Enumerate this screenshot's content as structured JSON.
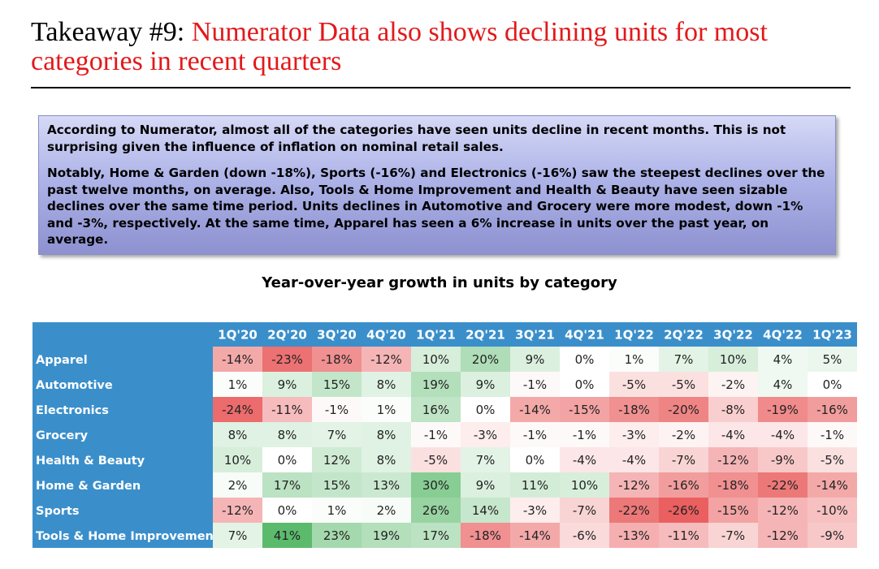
{
  "title": {
    "prefix": "Takeaway #9:",
    "highlight": "Numerator Data also shows declining units for most categories in recent quarters"
  },
  "summary": {
    "paragraph1": "According to Numerator, almost all of the categories have seen units decline in recent months. This is not surprising given the influence of inflation on nominal retail sales.",
    "paragraph2": "Notably, Home & Garden (down -18%), Sports (-16%) and Electronics (-16%) saw the steepest declines over the past twelve months, on average. Also, Tools & Home Improvement and Health & Beauty have seen sizable declines over the same time period. Units declines in Automotive and Grocery were more modest, down -1% and -3%, respectively. At the same time, Apparel has seen a 6% increase in units over the past year, on average."
  },
  "colors": {
    "header_bg": "#3a8fcb",
    "negative": "#ea5f60",
    "positive": "#5cba6d",
    "neutral": "#ffffff"
  },
  "chart_data": {
    "type": "heatmap",
    "title": "Year-over-year growth in units by category",
    "unit": "%",
    "columns": [
      "1Q'20",
      "2Q'20",
      "3Q'20",
      "4Q'20",
      "1Q'21",
      "2Q'21",
      "3Q'21",
      "4Q'21",
      "1Q'22",
      "2Q'22",
      "3Q'22",
      "4Q'22",
      "1Q'23"
    ],
    "rows": [
      {
        "label": "Apparel",
        "values": [
          -14,
          -23,
          -18,
          -12,
          10,
          20,
          9,
          0,
          1,
          7,
          10,
          4,
          5
        ]
      },
      {
        "label": "Automotive",
        "values": [
          1,
          9,
          15,
          8,
          19,
          9,
          -1,
          0,
          -5,
          -5,
          -2,
          4,
          0
        ]
      },
      {
        "label": "Electronics",
        "values": [
          -24,
          -11,
          -1,
          1,
          16,
          0,
          -14,
          -15,
          -18,
          -20,
          -8,
          -19,
          -16
        ]
      },
      {
        "label": "Grocery",
        "values": [
          8,
          8,
          7,
          8,
          -1,
          -3,
          -1,
          -1,
          -3,
          -2,
          -4,
          -4,
          -1
        ]
      },
      {
        "label": "Health & Beauty",
        "values": [
          10,
          0,
          12,
          8,
          -5,
          7,
          0,
          -4,
          -4,
          -7,
          -12,
          -9,
          -5
        ]
      },
      {
        "label": "Home & Garden",
        "values": [
          2,
          17,
          15,
          13,
          30,
          9,
          11,
          10,
          -12,
          -16,
          -18,
          -22,
          -14
        ]
      },
      {
        "label": "Sports",
        "values": [
          -12,
          0,
          1,
          2,
          26,
          14,
          -3,
          -7,
          -22,
          -26,
          -15,
          -12,
          -10
        ]
      },
      {
        "label": "Tools & Home Improvement",
        "values": [
          7,
          41,
          23,
          19,
          17,
          -18,
          -14,
          -6,
          -13,
          -11,
          -7,
          -12,
          -9
        ]
      }
    ],
    "color_scale": {
      "min": -26,
      "max": 41,
      "midpoint": 0
    }
  }
}
